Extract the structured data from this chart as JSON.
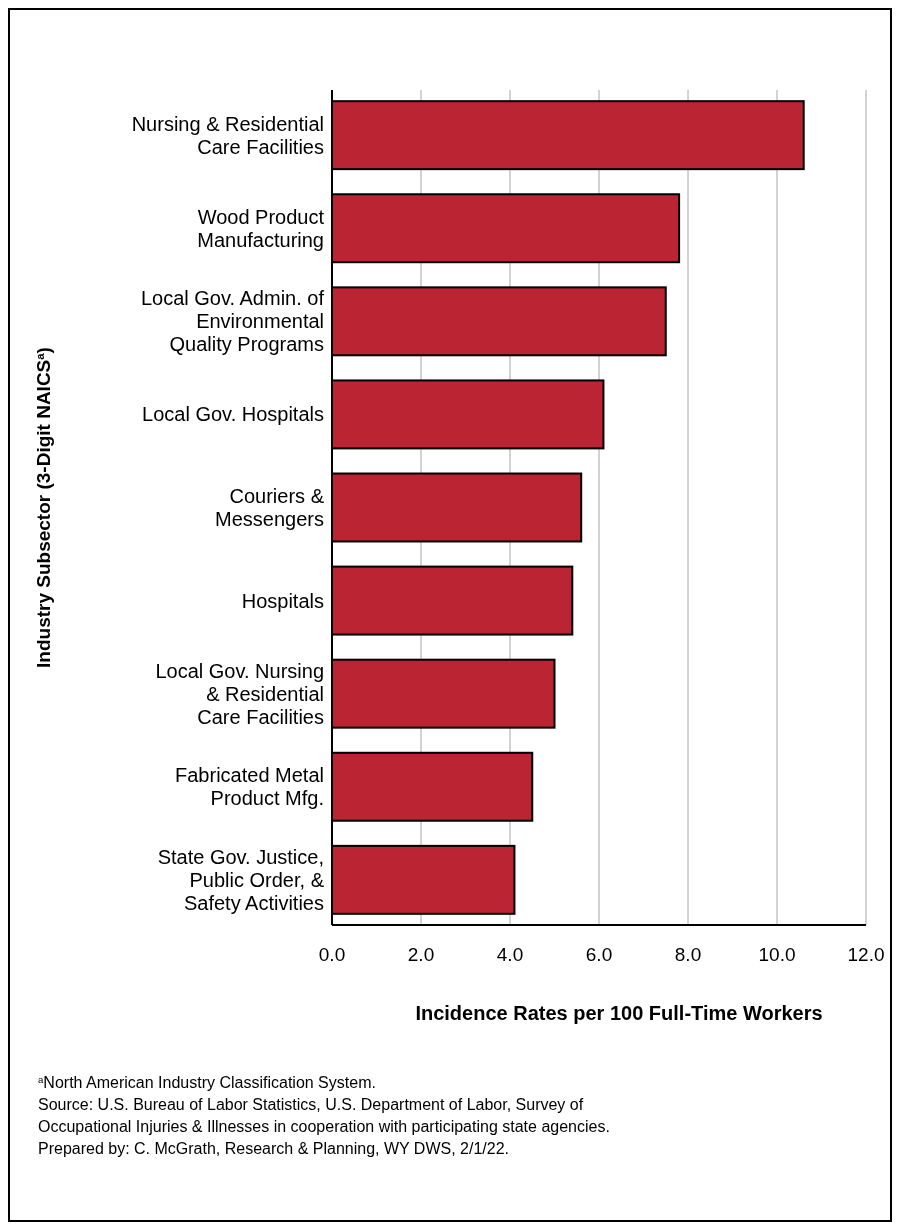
{
  "chart_data": {
    "type": "bar",
    "orientation": "horizontal",
    "categories": [
      "Nursing & Residential\nCare Facilities",
      "Wood Product\nManufacturing",
      "Local Gov. Admin. of\nEnvironmental\nQuality Programs",
      "Local Gov. Hospitals",
      "Couriers &\nMessengers",
      "Hospitals",
      "Local Gov. Nursing\n& Residential\nCare Facilities",
      "Fabricated Metal\nProduct Mfg.",
      "State Gov. Justice,\nPublic Order, &\nSafety Activities"
    ],
    "values": [
      10.6,
      7.8,
      7.5,
      6.1,
      5.6,
      5.4,
      5.0,
      4.5,
      4.1
    ],
    "color": "#ba2433",
    "xlim": [
      0,
      12
    ],
    "xticks": [
      {
        "value": 0,
        "label": "0.0"
      },
      {
        "value": 2,
        "label": "2.0"
      },
      {
        "value": 4,
        "label": "4.0"
      },
      {
        "value": 6,
        "label": "6.0"
      },
      {
        "value": 8,
        "label": "8.0"
      },
      {
        "value": 10,
        "label": "10.0"
      },
      {
        "value": 12,
        "label": "12.0"
      }
    ],
    "grid": "x",
    "xlabel": "Incidence Rates per 100 Full-Time Workers",
    "ylabel": "Industry Subsector (3-Digit NAICS$^{a}$)",
    "annotations": [
      "$^{a}$North American Industry Classification System.",
      "Source: U.S. Bureau of Labor Statistics, U.S. Department of Labor, Survey of\nOccupational Injuries & Illnesses in cooperation with participating state agencies.",
      "Prepared by: C. McGrath, Research & Planning, WY DWS, 2/1/22."
    ]
  }
}
